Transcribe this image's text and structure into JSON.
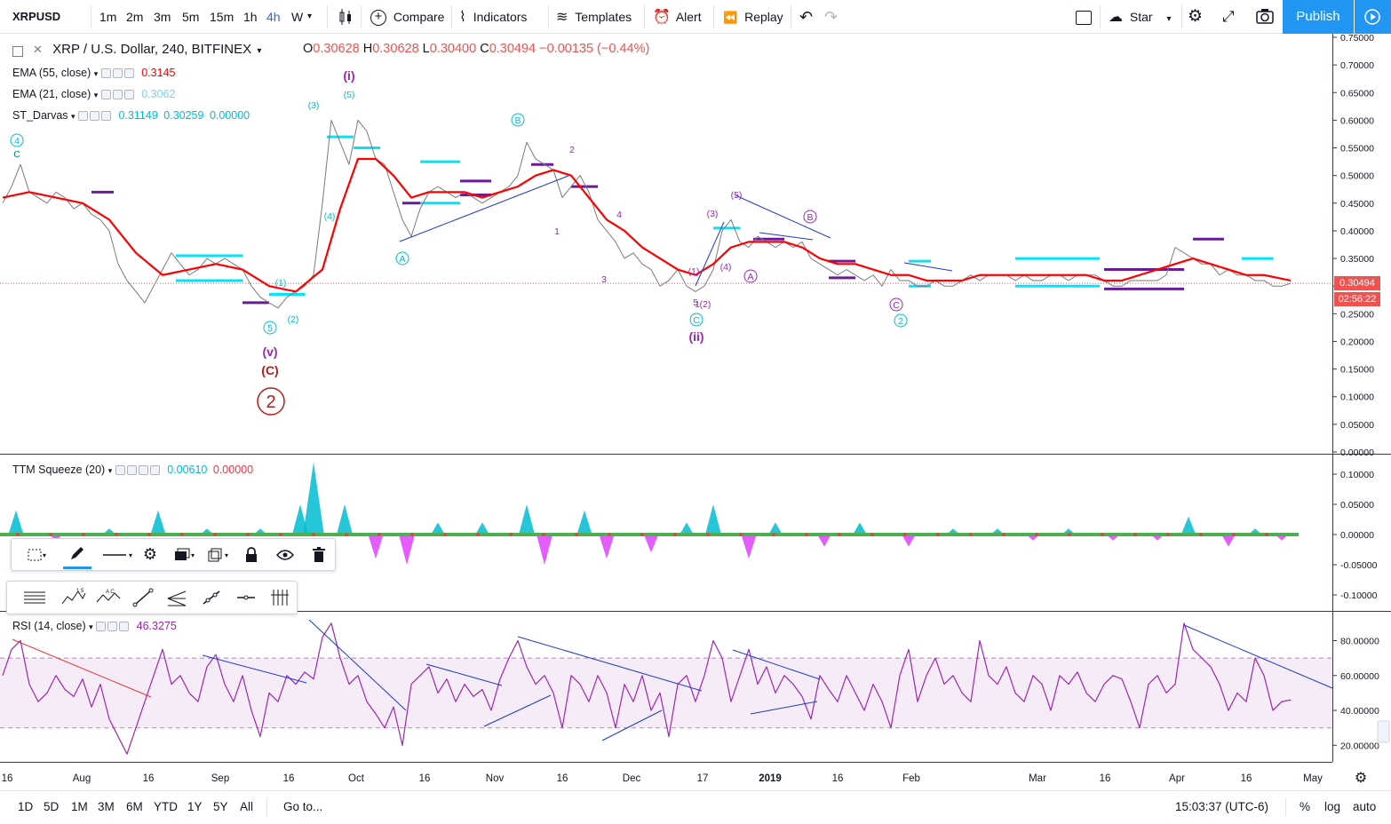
{
  "toolbar": {
    "symbol": "XRPUSD",
    "timeframes": [
      "1m",
      "2m",
      "3m",
      "5m",
      "15m",
      "1h",
      "4h",
      "W"
    ],
    "active_timeframe": "4h",
    "compare": "Compare",
    "indicators": "Indicators",
    "templates": "Templates",
    "alert": "Alert",
    "replay": "Replay",
    "star": "Star",
    "publish": "Publish"
  },
  "main_pane": {
    "title": "XRP / U.S. Dollar, 240, BITFINEX",
    "ohlc": {
      "o_label": "O",
      "o": "0.30628",
      "h_label": "H",
      "h": "0.30628",
      "l_label": "L",
      "l": "0.30400",
      "c_label": "C",
      "c": "0.30494",
      "change": "−0.00135 (−0.44%)"
    },
    "ema55": {
      "label": "EMA (55, close)",
      "value": "0.3145"
    },
    "ema21": {
      "label": "EMA (21, close)",
      "value": "0.3062"
    },
    "darvas": {
      "label": "ST_Darvas",
      "v1": "0.31149",
      "v2": "0.30259",
      "v3": "0.00000"
    },
    "price_tag": "0.30494",
    "countdown_tag": "02:56:22",
    "elliott_labels": [
      "4",
      "C",
      "(i)",
      "(5)",
      "(3)",
      "(4)",
      "(1)",
      "(2)",
      "5",
      "(v)",
      "(C)",
      "2",
      "B",
      "A",
      "2",
      "1",
      "4",
      "3",
      "1",
      "(3)",
      "(5)",
      "(4)",
      "(1)",
      "5",
      "(2)",
      "C",
      "(ii)",
      "A",
      "B",
      "C",
      "2"
    ]
  },
  "ttm_pane": {
    "label": "TTM Squeeze (20)",
    "v1": "0.00610",
    "v2": "0.00000"
  },
  "rsi_pane": {
    "label": "RSI (14, close)",
    "value": "46.3275"
  },
  "bottom": {
    "ranges": [
      "1D",
      "5D",
      "1M",
      "3M",
      "6M",
      "YTD",
      "1Y",
      "5Y",
      "All"
    ],
    "goto": "Go to...",
    "clock": "15:03:37 (UTC-6)",
    "percent": "%",
    "log": "log",
    "auto": "auto"
  },
  "chart_data": [
    {
      "type": "line",
      "title": "XRP / U.S. Dollar, 240, BITFINEX",
      "x_ticks": [
        "16",
        "Aug",
        "16",
        "Sep",
        "16",
        "Oct",
        "16",
        "Nov",
        "16",
        "Dec",
        "17",
        "2019",
        "16",
        "Feb",
        "Mar",
        "16",
        "Apr",
        "16",
        "May"
      ],
      "y_ticks": [
        "0.75000",
        "0.70000",
        "0.65000",
        "0.60000",
        "0.55000",
        "0.50000",
        "0.45000",
        "0.40000",
        "0.35000",
        "0.30000",
        "0.25000",
        "0.20000",
        "0.15000",
        "0.10000",
        "0.05000",
        "0.00000"
      ],
      "ylim": [
        0,
        0.75
      ],
      "series": [
        {
          "name": "XRPUSD close",
          "color": "#7a7a7a",
          "x": [
            0,
            10,
            20,
            30,
            40,
            50,
            60,
            70,
            80,
            90,
            100,
            110,
            120,
            130,
            140,
            150,
            160,
            170,
            180,
            190,
            200,
            210,
            220,
            230,
            240,
            250,
            260,
            270,
            280,
            290,
            300,
            310,
            320,
            330,
            340,
            350,
            360,
            370,
            380,
            390,
            400,
            410,
            420,
            430,
            440,
            450,
            460,
            470,
            480,
            490,
            500,
            510,
            520,
            530,
            540,
            550,
            560,
            570,
            580,
            590,
            600,
            610,
            620,
            630,
            640,
            650,
            660,
            670,
            680,
            690,
            700,
            710,
            720,
            730,
            740,
            750,
            760,
            770,
            780,
            790,
            800,
            810,
            820,
            830,
            840,
            850,
            860,
            870,
            880,
            890,
            900,
            910,
            920,
            930,
            940,
            950,
            960,
            970,
            980,
            990,
            1000,
            1010,
            1020,
            1030,
            1040,
            1050,
            1060,
            1070,
            1080,
            1090,
            1100,
            1110,
            1120,
            1130,
            1140,
            1150,
            1160,
            1170,
            1180,
            1190,
            1200,
            1210,
            1220,
            1230,
            1240,
            1250,
            1260,
            1270,
            1280,
            1290,
            1300,
            1310,
            1320,
            1330,
            1340,
            1350,
            1360,
            1370,
            1380,
            1390,
            1400,
            1410,
            1420,
            1430,
            1440,
            1450
          ],
          "y": [
            0.45,
            0.48,
            0.52,
            0.47,
            0.46,
            0.45,
            0.47,
            0.46,
            0.44,
            0.45,
            0.43,
            0.42,
            0.4,
            0.34,
            0.31,
            0.29,
            0.27,
            0.3,
            0.33,
            0.36,
            0.34,
            0.32,
            0.33,
            0.35,
            0.34,
            0.35,
            0.34,
            0.33,
            0.3,
            0.28,
            0.27,
            0.26,
            0.28,
            0.29,
            0.3,
            0.32,
            0.45,
            0.6,
            0.56,
            0.52,
            0.6,
            0.58,
            0.53,
            0.52,
            0.47,
            0.42,
            0.39,
            0.44,
            0.47,
            0.48,
            0.47,
            0.46,
            0.47,
            0.46,
            0.45,
            0.46,
            0.47,
            0.48,
            0.5,
            0.56,
            0.53,
            0.52,
            0.51,
            0.46,
            0.48,
            0.5,
            0.47,
            0.42,
            0.4,
            0.38,
            0.35,
            0.36,
            0.34,
            0.33,
            0.3,
            0.31,
            0.33,
            0.3,
            0.29,
            0.3,
            0.33,
            0.4,
            0.42,
            0.38,
            0.37,
            0.39,
            0.38,
            0.37,
            0.38,
            0.37,
            0.38,
            0.35,
            0.34,
            0.33,
            0.32,
            0.33,
            0.32,
            0.31,
            0.32,
            0.3,
            0.33,
            0.31,
            0.31,
            0.3,
            0.3,
            0.31,
            0.3,
            0.3,
            0.31,
            0.32,
            0.31,
            0.32,
            0.32,
            0.32,
            0.31,
            0.32,
            0.31,
            0.31,
            0.32,
            0.32,
            0.31,
            0.32,
            0.32,
            0.32,
            0.31,
            0.3,
            0.3,
            0.31,
            0.31,
            0.31,
            0.31,
            0.32,
            0.37,
            0.36,
            0.35,
            0.34,
            0.34,
            0.32,
            0.33,
            0.32,
            0.32,
            0.31,
            0.31,
            0.3,
            0.3,
            0.305
          ]
        },
        {
          "name": "EMA (55, close)",
          "color": "#ff0000",
          "x": [
            0,
            30,
            60,
            90,
            120,
            150,
            180,
            210,
            240,
            270,
            300,
            330,
            360,
            380,
            400,
            420,
            440,
            460,
            480,
            500,
            520,
            540,
            560,
            580,
            600,
            620,
            640,
            660,
            680,
            700,
            720,
            740,
            760,
            780,
            800,
            820,
            840,
            860,
            880,
            900,
            920,
            940,
            960,
            980,
            1000,
            1020,
            1040,
            1060,
            1080,
            1100,
            1120,
            1140,
            1160,
            1180,
            1200,
            1220,
            1240,
            1260,
            1280,
            1300,
            1320,
            1340,
            1360,
            1380,
            1400,
            1420,
            1450
          ],
          "y": [
            0.46,
            0.47,
            0.46,
            0.45,
            0.42,
            0.36,
            0.32,
            0.33,
            0.34,
            0.33,
            0.3,
            0.29,
            0.33,
            0.44,
            0.53,
            0.53,
            0.5,
            0.46,
            0.47,
            0.47,
            0.47,
            0.46,
            0.47,
            0.48,
            0.5,
            0.51,
            0.5,
            0.46,
            0.42,
            0.4,
            0.37,
            0.35,
            0.33,
            0.32,
            0.34,
            0.37,
            0.38,
            0.38,
            0.38,
            0.37,
            0.35,
            0.34,
            0.34,
            0.33,
            0.32,
            0.32,
            0.31,
            0.31,
            0.31,
            0.32,
            0.32,
            0.32,
            0.32,
            0.32,
            0.32,
            0.32,
            0.31,
            0.31,
            0.32,
            0.33,
            0.34,
            0.35,
            0.34,
            0.33,
            0.32,
            0.32,
            0.31
          ]
        }
      ]
    },
    {
      "type": "bar",
      "title": "TTM Squeeze (20)",
      "y_ticks": [
        "0.10000",
        "0.05000",
        "0.00000",
        "-0.05000",
        "-0.10000"
      ],
      "ylim": [
        -0.12,
        0.12
      ],
      "x": [
        15,
        60,
        120,
        175,
        230,
        290,
        335,
        350,
        385,
        420,
        455,
        490,
        540,
        590,
        610,
        655,
        680,
        730,
        770,
        800,
        840,
        870,
        925,
        965,
        1020,
        1070,
        1120,
        1160,
        1200,
        1250,
        1300,
        1335,
        1380,
        1410,
        1440
      ],
      "values": [
        0.04,
        -0.01,
        0.01,
        0.04,
        0.01,
        0.01,
        0.05,
        0.12,
        0.05,
        -0.04,
        -0.05,
        0.02,
        0.02,
        0.05,
        -0.05,
        0.04,
        -0.04,
        -0.03,
        0.02,
        0.05,
        -0.04,
        0.02,
        -0.02,
        0.02,
        -0.02,
        0.01,
        0.01,
        -0.01,
        0.01,
        -0.01,
        -0.01,
        0.03,
        -0.02,
        0.01,
        -0.01
      ]
    },
    {
      "type": "line",
      "title": "RSI (14, close)",
      "y_ticks": [
        "80.00000",
        "60.00000",
        "40.00000",
        "20.00000"
      ],
      "ylim": [
        10,
        95
      ],
      "bands": [
        30,
        70
      ],
      "series": [
        {
          "name": "RSI (14, close)",
          "color": "#9c27b0",
          "x": [
            0,
            10,
            20,
            30,
            40,
            50,
            60,
            70,
            80,
            90,
            100,
            110,
            120,
            130,
            140,
            150,
            160,
            170,
            180,
            190,
            200,
            210,
            220,
            230,
            240,
            250,
            260,
            270,
            280,
            290,
            300,
            310,
            320,
            330,
            340,
            350,
            360,
            370,
            380,
            390,
            400,
            410,
            420,
            430,
            440,
            450,
            460,
            470,
            480,
            490,
            500,
            510,
            520,
            530,
            540,
            550,
            560,
            570,
            580,
            590,
            600,
            610,
            620,
            630,
            640,
            650,
            660,
            670,
            680,
            690,
            700,
            710,
            720,
            730,
            740,
            750,
            760,
            770,
            780,
            790,
            800,
            810,
            820,
            830,
            840,
            850,
            860,
            870,
            880,
            890,
            900,
            910,
            920,
            930,
            940,
            950,
            960,
            970,
            980,
            990,
            1000,
            1010,
            1020,
            1030,
            1040,
            1050,
            1060,
            1070,
            1080,
            1090,
            1100,
            1110,
            1120,
            1130,
            1140,
            1150,
            1160,
            1170,
            1180,
            1190,
            1200,
            1210,
            1220,
            1230,
            1240,
            1250,
            1260,
            1270,
            1280,
            1290,
            1300,
            1310,
            1320,
            1330,
            1340,
            1350,
            1360,
            1370,
            1380,
            1390,
            1400,
            1410,
            1420,
            1430,
            1440,
            1450
          ],
          "y": [
            60,
            75,
            80,
            55,
            45,
            50,
            60,
            52,
            48,
            58,
            42,
            55,
            35,
            25,
            15,
            30,
            45,
            60,
            75,
            55,
            60,
            50,
            45,
            65,
            72,
            55,
            45,
            60,
            40,
            25,
            50,
            45,
            60,
            55,
            62,
            58,
            82,
            90,
            70,
            55,
            60,
            45,
            38,
            30,
            42,
            20,
            55,
            60,
            65,
            50,
            58,
            45,
            55,
            48,
            52,
            40,
            58,
            70,
            80,
            65,
            55,
            60,
            50,
            30,
            60,
            55,
            45,
            60,
            50,
            30,
            55,
            45,
            60,
            40,
            50,
            25,
            55,
            60,
            45,
            60,
            80,
            70,
            45,
            60,
            75,
            55,
            65,
            50,
            60,
            55,
            48,
            35,
            60,
            52,
            45,
            60,
            50,
            40,
            55,
            45,
            30,
            60,
            75,
            45,
            60,
            70,
            55,
            60,
            50,
            45,
            80,
            60,
            55,
            65,
            50,
            45,
            60,
            55,
            40,
            60,
            55,
            62,
            50,
            45,
            55,
            60,
            58,
            45,
            30,
            55,
            60,
            50,
            55,
            90,
            75,
            70,
            65,
            55,
            40,
            50,
            45,
            70,
            60,
            40,
            45,
            46
          ]
        }
      ]
    }
  ]
}
